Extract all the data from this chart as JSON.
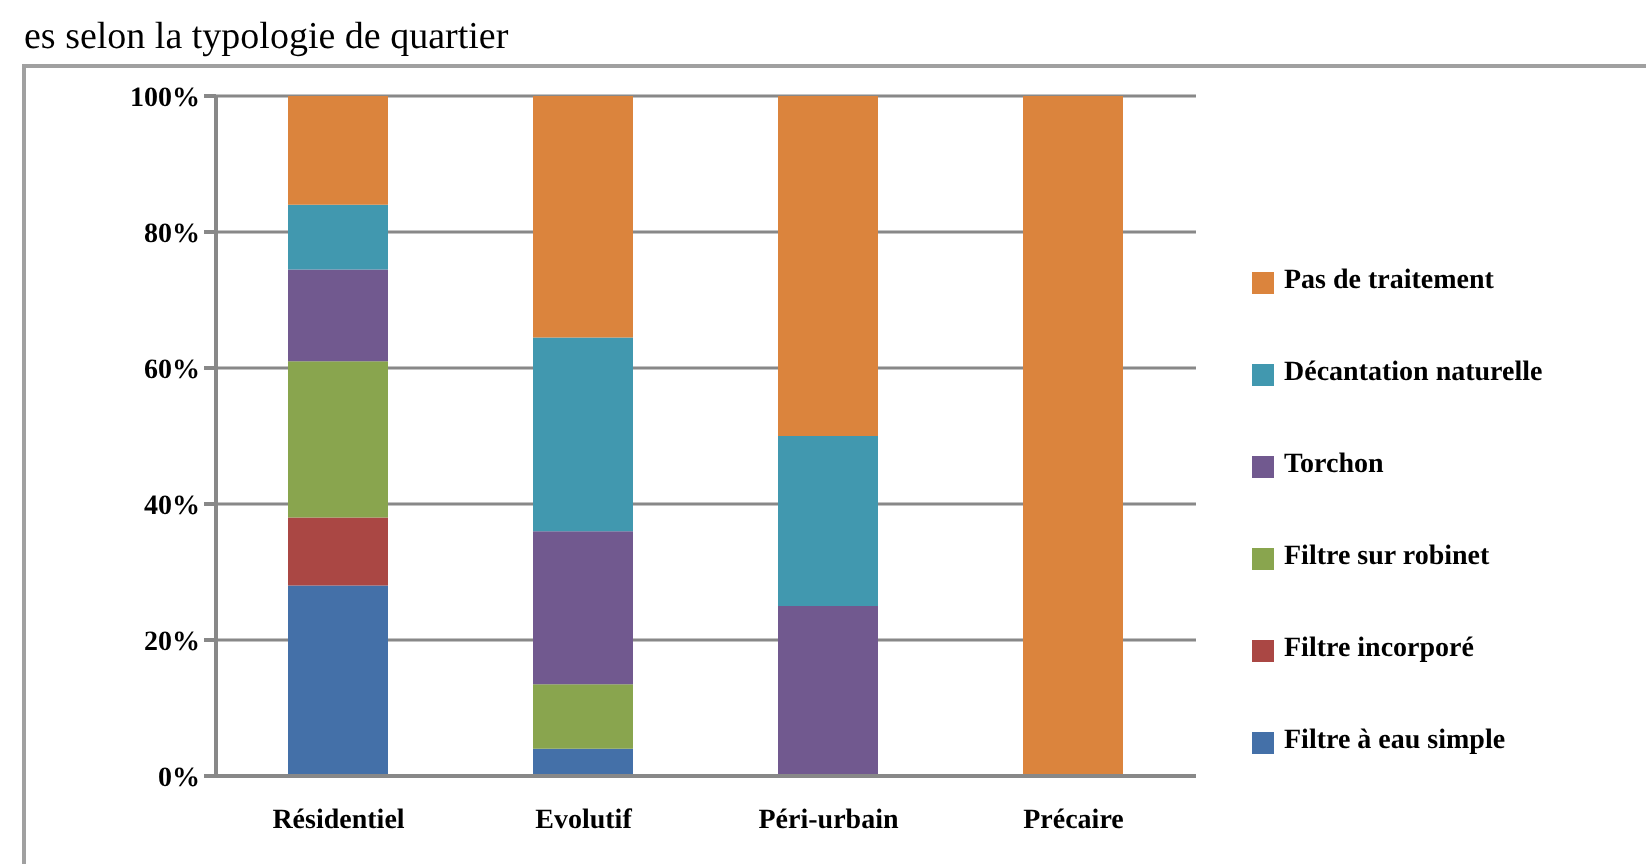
{
  "chart_data": {
    "type": "bar",
    "title": "es selon la typologie de quartier",
    "stacked": true,
    "categories": [
      "Résidentiel",
      "Evolutif",
      "Péri-urbain",
      "Précaire"
    ],
    "series": [
      {
        "name": "Filtre à eau simple",
        "color": "#4470a8",
        "values": [
          28,
          4,
          0,
          0
        ]
      },
      {
        "name": "Filtre incorporé",
        "color": "#aa4744",
        "values": [
          10,
          0,
          0,
          0
        ]
      },
      {
        "name": "Filtre sur robinet",
        "color": "#89a54e",
        "values": [
          23,
          9.5,
          0,
          0
        ]
      },
      {
        "name": "Torchon",
        "color": "#71598f",
        "values": [
          13.5,
          22.5,
          25,
          0
        ]
      },
      {
        "name": "Décantation naturelle",
        "color": "#4198af",
        "values": [
          9.5,
          28.5,
          25,
          0
        ]
      },
      {
        "name": "Pas de traitement",
        "color": "#db843d",
        "values": [
          16,
          35.5,
          50,
          100
        ]
      }
    ],
    "ylim": [
      0,
      100
    ],
    "yticks": [
      {
        "value": 0,
        "label": "0%"
      },
      {
        "value": 20,
        "label": "20%"
      },
      {
        "value": 40,
        "label": "40%"
      },
      {
        "value": 60,
        "label": "60%"
      },
      {
        "value": 80,
        "label": "80%"
      },
      {
        "value": 100,
        "label": "100%"
      }
    ],
    "grid": "y",
    "legend": "right"
  }
}
